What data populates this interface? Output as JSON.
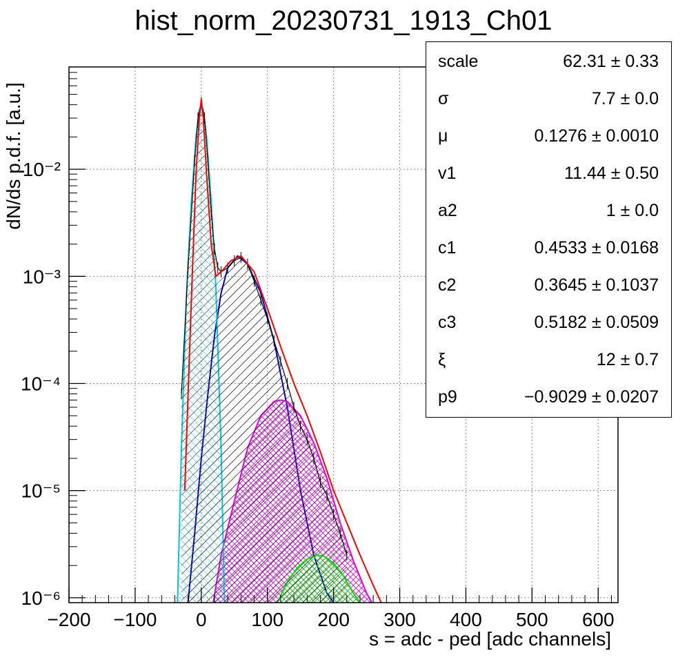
{
  "chart_data": {
    "type": "line",
    "title": "hist_norm_20230731_1913_Ch01",
    "xlabel": "s = adc - ped [adc channels]",
    "ylabel": "dN/ds p.d.f. [a.u.]",
    "xlim": [
      -200,
      630
    ],
    "ylim": [
      9e-07,
      0.09
    ],
    "yscale": "log",
    "grid": true,
    "x_ticks": [
      -200,
      -100,
      0,
      100,
      200,
      300,
      400,
      500,
      600
    ],
    "x_tick_labels": [
      "−200",
      "−100",
      "0",
      "100",
      "200",
      "300",
      "400",
      "500",
      "600"
    ],
    "y_ticks": [
      1e-06,
      1e-05,
      0.0001,
      0.001,
      0.01
    ],
    "y_tick_labels": [
      "10⁻⁶",
      "10⁻⁵",
      "10⁻⁴",
      "10⁻³",
      "10⁻²"
    ],
    "colors": {
      "histogram": "#000000",
      "total_fit": "#ff0000",
      "pedestal": "#00c8e0",
      "one_pe": "#0000cc",
      "two_pe": "#e000e0",
      "three_pe": "#00dd00"
    },
    "series": [
      {
        "kind": "histogram",
        "x": [
          -30,
          -20,
          -10,
          -5,
          0,
          5,
          10,
          15,
          20,
          25,
          30,
          40,
          50,
          60,
          70,
          80,
          90,
          100,
          110,
          120,
          130,
          140,
          150,
          160,
          170,
          180,
          190,
          200,
          210,
          220
        ],
        "y": [
          8e-05,
          0.0012,
          0.012,
          0.03,
          0.042,
          0.03,
          0.012,
          0.004,
          0.0018,
          0.0012,
          0.0011,
          0.0012,
          0.0014,
          0.0015,
          0.0013,
          0.0009,
          0.0006,
          0.0004,
          0.00025,
          0.00016,
          0.0001,
          6e-05,
          4e-05,
          3e-05,
          2e-05,
          1.2e-05,
          9e-06,
          6e-06,
          4e-06,
          2.5e-06
        ]
      },
      {
        "kind": "total_fit",
        "x": [
          -25,
          -15,
          -8,
          -3,
          0,
          3,
          8,
          15,
          22,
          30,
          45,
          60,
          80,
          100,
          120,
          140,
          160,
          180,
          200,
          220,
          240,
          260,
          272
        ],
        "y": [
          1e-05,
          0.0006,
          0.009,
          0.03,
          0.045,
          0.03,
          0.009,
          0.002,
          0.001,
          0.0011,
          0.0014,
          0.00155,
          0.0011,
          0.0005,
          0.00022,
          0.0001,
          5e-05,
          2.3e-05,
          1e-05,
          5e-06,
          2.5e-06,
          1.3e-06,
          9e-07
        ]
      },
      {
        "kind": "pedestal_gaussian",
        "x": [
          -36,
          -30,
          -22,
          -15,
          -8,
          -3,
          0,
          3,
          8,
          15,
          22,
          30,
          35
        ],
        "y": [
          9e-07,
          2.5e-05,
          0.0008,
          0.005,
          0.02,
          0.036,
          0.04,
          0.036,
          0.02,
          0.005,
          0.0008,
          2.5e-05,
          9e-07
        ]
      },
      {
        "kind": "one_pe_component",
        "x": [
          -20,
          -10,
          0,
          10,
          20,
          30,
          40,
          55,
          70,
          90,
          110,
          130,
          150,
          170,
          190,
          200
        ],
        "y": [
          9e-07,
          4e-06,
          2e-05,
          8e-05,
          0.00028,
          0.0007,
          0.0012,
          0.00155,
          0.0013,
          0.0007,
          0.00025,
          6e-05,
          1e-05,
          2.5e-06,
          1.1e-06,
          9e-07
        ]
      },
      {
        "kind": "two_pe_component",
        "x": [
          18,
          30,
          50,
          70,
          90,
          110,
          120,
          130,
          150,
          170,
          190,
          210,
          230,
          250,
          258
        ],
        "y": [
          9e-07,
          2.5e-06,
          8e-06,
          2.5e-05,
          5e-05,
          6.8e-05,
          7e-05,
          6.8e-05,
          5e-05,
          2.8e-05,
          1.3e-05,
          5e-06,
          2.2e-06,
          1.1e-06,
          9e-07
        ]
      },
      {
        "kind": "three_pe_component",
        "x": [
          115,
          130,
          145,
          160,
          175,
          185,
          200,
          215,
          230,
          240
        ],
        "y": [
          9e-07,
          1.4e-06,
          1.9e-06,
          2.3e-06,
          2.5e-06,
          2.45e-06,
          2.1e-06,
          1.6e-06,
          1.1e-06,
          9e-07
        ]
      }
    ]
  },
  "stats": [
    {
      "name": "scale",
      "value": "62.31 ± 0.33"
    },
    {
      "name": "σ",
      "value": "7.7 ± 0.0"
    },
    {
      "name": "μ",
      "value": "0.1276 ± 0.0010"
    },
    {
      "name": "v1",
      "value": "11.44 ± 0.50"
    },
    {
      "name": "a2",
      "value": "1 ± 0.0"
    },
    {
      "name": "c1",
      "value": "0.4533 ± 0.0168"
    },
    {
      "name": "c2",
      "value": "0.3645 ± 0.1037"
    },
    {
      "name": "c3",
      "value": "0.5182 ± 0.0509"
    },
    {
      "name": "ξ",
      "value": "12 ± 0.7"
    },
    {
      "name": "p9",
      "value": "−0.9029 ± 0.0207"
    }
  ]
}
